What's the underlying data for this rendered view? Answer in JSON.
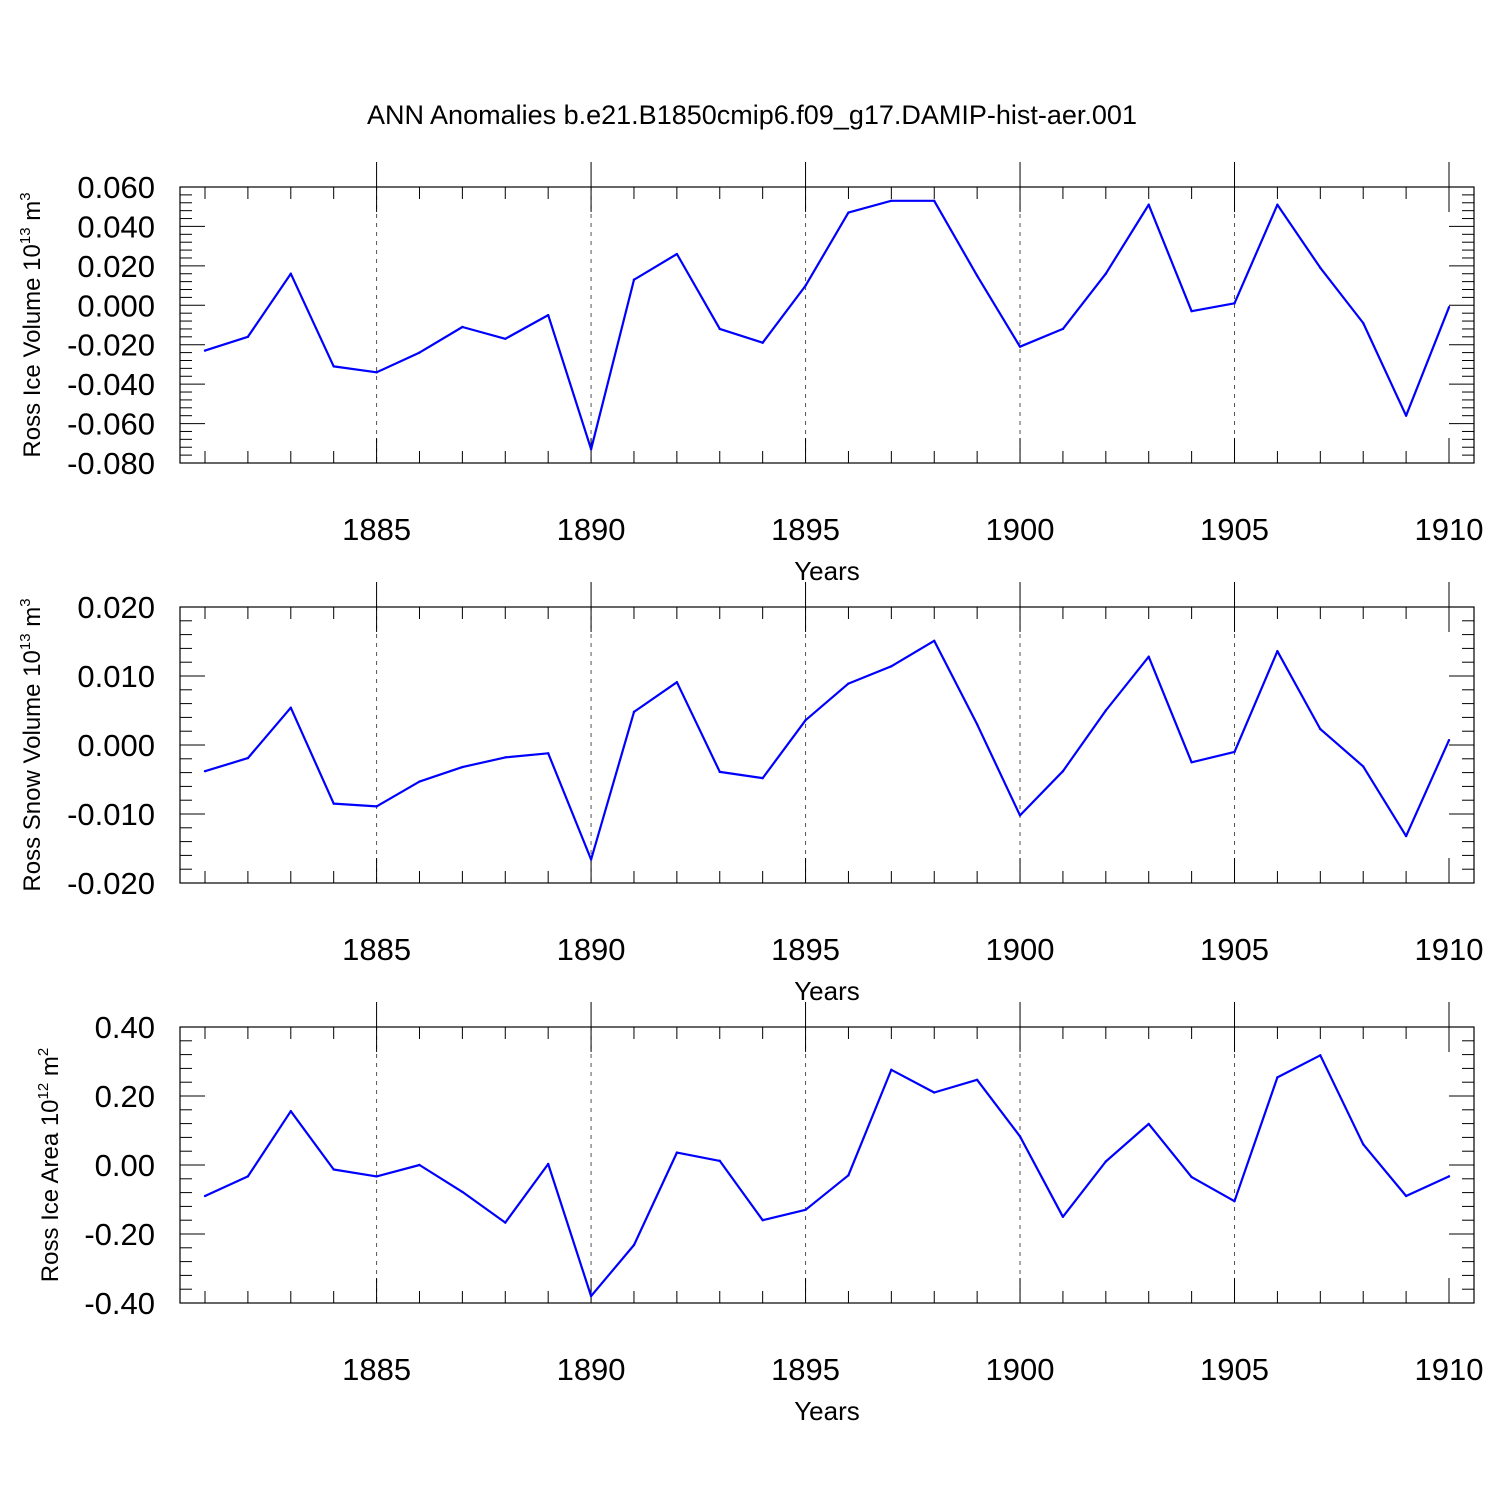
{
  "title": "ANN Anomalies b.e21.B1850cmip6.f09_g17.DAMIP-hist-aer.001",
  "colors": {
    "line": "#0000ff",
    "axis": "#000000",
    "grid": "#555555"
  },
  "chart_data": [
    {
      "type": "line",
      "ylabel_main": "Ross Ice Volume 10",
      "ylabel_exp": "13",
      "ylabel_unit": " m",
      "ylabel_unit_exp": "3",
      "xlabel": "Years",
      "xlim": [
        1881,
        1910
      ],
      "ylim": [
        -0.08,
        0.06
      ],
      "yticks": [
        "0.060",
        "0.040",
        "0.020",
        "0.000",
        "-0.020",
        "-0.040",
        "-0.060",
        "-0.080"
      ],
      "ytick_values": [
        0.06,
        0.04,
        0.02,
        0.0,
        -0.02,
        -0.04,
        -0.06,
        -0.08
      ],
      "xticks": [
        "1885",
        "1890",
        "1895",
        "1900",
        "1905",
        "1910"
      ],
      "xtick_values": [
        1885,
        1890,
        1895,
        1900,
        1905,
        1910
      ],
      "grid": "dashed vertical at major x ticks",
      "x": [
        1881,
        1882,
        1883,
        1884,
        1885,
        1886,
        1887,
        1888,
        1889,
        1890,
        1891,
        1892,
        1893,
        1894,
        1895,
        1896,
        1897,
        1898,
        1899,
        1900,
        1901,
        1902,
        1903,
        1904,
        1905,
        1906,
        1907,
        1908,
        1909,
        1910
      ],
      "y": [
        -0.023,
        -0.016,
        0.016,
        -0.031,
        -0.034,
        -0.024,
        -0.011,
        -0.017,
        -0.005,
        -0.073,
        0.013,
        0.026,
        -0.012,
        -0.019,
        0.01,
        0.047,
        0.053,
        0.053,
        0.015,
        -0.021,
        -0.012,
        0.016,
        0.051,
        -0.003,
        0.001,
        0.051,
        0.019,
        -0.009,
        -0.056,
        -0.001
      ]
    },
    {
      "type": "line",
      "ylabel_main": "Ross Snow Volume 10",
      "ylabel_exp": "13",
      "ylabel_unit": " m",
      "ylabel_unit_exp": "3",
      "xlabel": "Years",
      "xlim": [
        1881,
        1910
      ],
      "ylim": [
        -0.02,
        0.02
      ],
      "yticks": [
        "0.020",
        "0.010",
        "0.000",
        "-0.010",
        "-0.020"
      ],
      "ytick_values": [
        0.02,
        0.01,
        0.0,
        -0.01,
        -0.02
      ],
      "xticks": [
        "1885",
        "1890",
        "1895",
        "1900",
        "1905",
        "1910"
      ],
      "xtick_values": [
        1885,
        1890,
        1895,
        1900,
        1905,
        1910
      ],
      "grid": "dashed vertical at major x ticks",
      "x": [
        1881,
        1882,
        1883,
        1884,
        1885,
        1886,
        1887,
        1888,
        1889,
        1890,
        1891,
        1892,
        1893,
        1894,
        1895,
        1896,
        1897,
        1898,
        1899,
        1900,
        1901,
        1902,
        1903,
        1904,
        1905,
        1906,
        1907,
        1908,
        1909,
        1910
      ],
      "y": [
        -0.0038,
        -0.0019,
        0.0054,
        -0.0085,
        -0.0089,
        -0.0053,
        -0.0032,
        -0.0018,
        -0.0012,
        -0.0166,
        0.0048,
        0.0091,
        -0.0039,
        -0.0048,
        0.0036,
        0.0089,
        0.0114,
        0.0151,
        0.003,
        -0.0102,
        -0.0038,
        0.005,
        0.0128,
        -0.0025,
        -0.001,
        0.0136,
        0.0023,
        -0.0031,
        -0.0132,
        0.0007
      ]
    },
    {
      "type": "line",
      "ylabel_main": "Ross Ice Area 10",
      "ylabel_exp": "12",
      "ylabel_unit": " m",
      "ylabel_unit_exp": "2",
      "xlabel": "Years",
      "xlim": [
        1881,
        1910
      ],
      "ylim": [
        -0.4,
        0.4
      ],
      "yticks": [
        "0.40",
        "0.20",
        "0.00",
        "-0.20",
        "-0.40"
      ],
      "ytick_values": [
        0.4,
        0.2,
        0.0,
        -0.2,
        -0.4
      ],
      "xticks": [
        "1885",
        "1890",
        "1895",
        "1900",
        "1905",
        "1910"
      ],
      "xtick_values": [
        1885,
        1890,
        1895,
        1900,
        1905,
        1910
      ],
      "grid": "dashed vertical at major x ticks",
      "x": [
        1881,
        1882,
        1883,
        1884,
        1885,
        1886,
        1887,
        1888,
        1889,
        1890,
        1891,
        1892,
        1893,
        1894,
        1895,
        1896,
        1897,
        1898,
        1899,
        1900,
        1901,
        1902,
        1903,
        1904,
        1905,
        1906,
        1907,
        1908,
        1909,
        1910
      ],
      "y": [
        -0.09,
        -0.033,
        0.156,
        -0.013,
        -0.033,
        0.0,
        -0.078,
        -0.167,
        0.003,
        -0.38,
        -0.232,
        0.036,
        0.012,
        -0.16,
        -0.13,
        -0.03,
        0.276,
        0.21,
        0.247,
        0.083,
        -0.15,
        0.01,
        0.119,
        -0.035,
        -0.105,
        0.254,
        0.318,
        0.06,
        -0.09,
        -0.033
      ]
    }
  ]
}
